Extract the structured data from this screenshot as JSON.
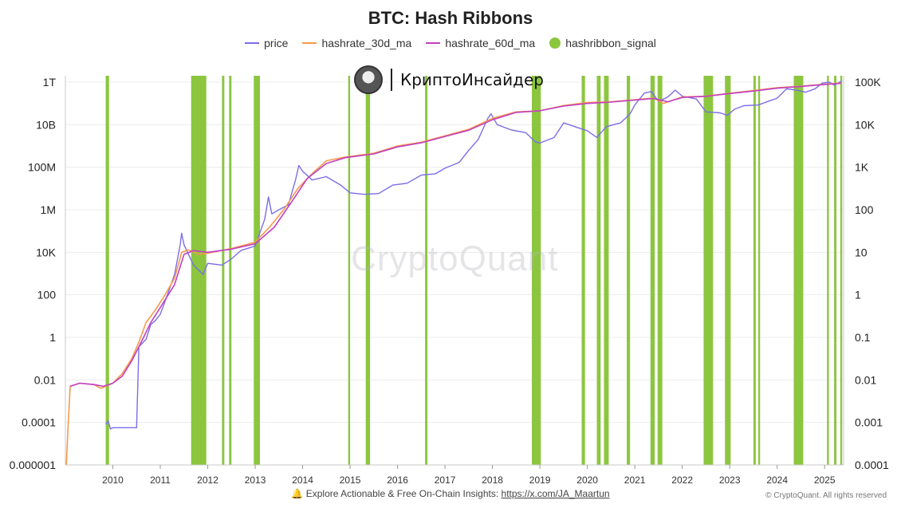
{
  "chart_data": {
    "type": "line",
    "title": "BTC: Hash Ribbons",
    "legend": [
      {
        "name": "price",
        "color": "#7b6ee6",
        "kind": "line"
      },
      {
        "name": "hashrate_30d_ma",
        "color": "#f59a4a",
        "kind": "line"
      },
      {
        "name": "hashrate_60d_ma",
        "color": "#c23fc4",
        "kind": "line"
      },
      {
        "name": "hashribbon_signal",
        "color": "#8cc63f",
        "kind": "dot"
      }
    ],
    "legend_position": "top-center",
    "x_ticks": [
      "2010",
      "2011",
      "2012",
      "2013",
      "2014",
      "2015",
      "2016",
      "2017",
      "2018",
      "2019",
      "2020",
      "2021",
      "2022",
      "2023",
      "2024",
      "2025"
    ],
    "xlim": [
      2009.0,
      2025.4
    ],
    "left_axis": {
      "scale": "log",
      "ylim": [
        1e-06,
        1000000000000.0
      ],
      "ticks": [
        "0.000001",
        "0.0001",
        "0.01",
        "1",
        "100",
        "10K",
        "1M",
        "100M",
        "10B",
        "1T"
      ]
    },
    "right_axis": {
      "scale": "log",
      "ylim": [
        0.0001,
        100000
      ],
      "ticks": [
        "0.0001",
        "0.001",
        "0.01",
        "0.1",
        "1",
        "10",
        "100",
        "1K",
        "10K",
        "100K"
      ]
    },
    "grid": "horizontal",
    "series": [
      {
        "name": "price",
        "axis": "right",
        "points": [
          [
            2009.85,
            0.0009
          ],
          [
            2009.9,
            0.0011
          ],
          [
            2009.95,
            0.0007
          ],
          [
            2010.0,
            0.00075
          ],
          [
            2010.5,
            0.00075
          ],
          [
            2010.55,
            0.06
          ],
          [
            2010.7,
            0.09
          ],
          [
            2010.8,
            0.2
          ],
          [
            2010.9,
            0.25
          ],
          [
            2011.0,
            0.35
          ],
          [
            2011.15,
            1.0
          ],
          [
            2011.3,
            3.0
          ],
          [
            2011.42,
            15.0
          ],
          [
            2011.45,
            28.0
          ],
          [
            2011.5,
            15.0
          ],
          [
            2011.7,
            5.0
          ],
          [
            2011.9,
            3.0
          ],
          [
            2012.0,
            5.5
          ],
          [
            2012.3,
            5.0
          ],
          [
            2012.5,
            7.0
          ],
          [
            2012.7,
            11.0
          ],
          [
            2012.9,
            13.0
          ],
          [
            2013.0,
            14.0
          ],
          [
            2013.2,
            60.0
          ],
          [
            2013.28,
            200.0
          ],
          [
            2013.35,
            80.0
          ],
          [
            2013.5,
            100.0
          ],
          [
            2013.7,
            130.0
          ],
          [
            2013.85,
            500.0
          ],
          [
            2013.92,
            1100.0
          ],
          [
            2014.0,
            800.0
          ],
          [
            2014.2,
            500.0
          ],
          [
            2014.5,
            600.0
          ],
          [
            2014.8,
            380.0
          ],
          [
            2015.0,
            250.0
          ],
          [
            2015.3,
            230.0
          ],
          [
            2015.6,
            240.0
          ],
          [
            2015.9,
            380.0
          ],
          [
            2016.2,
            420.0
          ],
          [
            2016.5,
            650.0
          ],
          [
            2016.8,
            700.0
          ],
          [
            2017.0,
            950.0
          ],
          [
            2017.3,
            1300.0
          ],
          [
            2017.5,
            2500.0
          ],
          [
            2017.7,
            4500.0
          ],
          [
            2017.9,
            14000.0
          ],
          [
            2017.97,
            18000.0
          ],
          [
            2018.1,
            10000.0
          ],
          [
            2018.4,
            7500.0
          ],
          [
            2018.7,
            6500.0
          ],
          [
            2018.9,
            4000.0
          ],
          [
            2019.0,
            3700.0
          ],
          [
            2019.3,
            5000.0
          ],
          [
            2019.5,
            11000.0
          ],
          [
            2019.8,
            8500.0
          ],
          [
            2020.0,
            7200.0
          ],
          [
            2020.2,
            5000.0
          ],
          [
            2020.4,
            9000.0
          ],
          [
            2020.7,
            11000.0
          ],
          [
            2020.9,
            18000.0
          ],
          [
            2021.0,
            29000.0
          ],
          [
            2021.2,
            55000.0
          ],
          [
            2021.35,
            60000.0
          ],
          [
            2021.5,
            35000.0
          ],
          [
            2021.7,
            45000.0
          ],
          [
            2021.85,
            65000.0
          ],
          [
            2022.0,
            47000.0
          ],
          [
            2022.3,
            40000.0
          ],
          [
            2022.5,
            20000.0
          ],
          [
            2022.8,
            19000.0
          ],
          [
            2022.95,
            16500.0
          ],
          [
            2023.1,
            23000.0
          ],
          [
            2023.3,
            28000.0
          ],
          [
            2023.6,
            29000.0
          ],
          [
            2023.8,
            35000.0
          ],
          [
            2024.0,
            42000.0
          ],
          [
            2024.2,
            70000.0
          ],
          [
            2024.4,
            65000.0
          ],
          [
            2024.6,
            58000.0
          ],
          [
            2024.8,
            70000.0
          ],
          [
            2024.95,
            95000.0
          ],
          [
            2025.1,
            100000.0
          ],
          [
            2025.2,
            85000.0
          ],
          [
            2025.35,
            105000.0
          ]
        ]
      },
      {
        "name": "hashrate_30d_ma",
        "axis": "left",
        "points": [
          [
            2009.02,
            1e-06
          ],
          [
            2009.06,
            0.0001
          ],
          [
            2009.1,
            0.005
          ],
          [
            2009.3,
            0.007
          ],
          [
            2009.6,
            0.006
          ],
          [
            2009.75,
            0.004
          ],
          [
            2009.85,
            0.005
          ],
          [
            2010.0,
            0.007
          ],
          [
            2010.2,
            0.02
          ],
          [
            2010.4,
            0.1
          ],
          [
            2010.55,
            0.6
          ],
          [
            2010.7,
            5.0
          ],
          [
            2010.9,
            20.0
          ],
          [
            2011.1,
            100.0
          ],
          [
            2011.3,
            600.0
          ],
          [
            2011.45,
            10000.0
          ],
          [
            2011.6,
            13000.0
          ],
          [
            2011.8,
            8000.0
          ],
          [
            2012.0,
            9000.0
          ],
          [
            2012.5,
            15000.0
          ],
          [
            2013.0,
            30000.0
          ],
          [
            2013.3,
            150000.0
          ],
          [
            2013.6,
            1000000.0
          ],
          [
            2013.9,
            10000000.0
          ],
          [
            2014.2,
            50000000.0
          ],
          [
            2014.5,
            200000000.0
          ],
          [
            2014.9,
            300000000.0
          ],
          [
            2015.5,
            450000000.0
          ],
          [
            2016.0,
            1000000000.0
          ],
          [
            2016.5,
            1500000000.0
          ],
          [
            2017.0,
            3000000000.0
          ],
          [
            2017.5,
            6000000000.0
          ],
          [
            2018.0,
            20000000000.0
          ],
          [
            2018.5,
            40000000000.0
          ],
          [
            2019.0,
            45000000000.0
          ],
          [
            2019.5,
            80000000000.0
          ],
          [
            2020.0,
            110000000000.0
          ],
          [
            2020.5,
            120000000000.0
          ],
          [
            2021.0,
            150000000000.0
          ],
          [
            2021.4,
            180000000000.0
          ],
          [
            2021.6,
            100000000000.0
          ],
          [
            2022.0,
            200000000000.0
          ],
          [
            2022.5,
            220000000000.0
          ],
          [
            2023.0,
            300000000000.0
          ],
          [
            2023.5,
            400000000000.0
          ],
          [
            2024.0,
            550000000000.0
          ],
          [
            2024.5,
            650000000000.0
          ],
          [
            2025.0,
            800000000000.0
          ],
          [
            2025.35,
            900000000000.0
          ]
        ]
      },
      {
        "name": "hashrate_60d_ma",
        "axis": "left",
        "points": [
          [
            2009.1,
            0.005
          ],
          [
            2009.3,
            0.007
          ],
          [
            2009.6,
            0.006
          ],
          [
            2009.8,
            0.005
          ],
          [
            2010.0,
            0.007
          ],
          [
            2010.2,
            0.015
          ],
          [
            2010.4,
            0.08
          ],
          [
            2010.6,
            0.6
          ],
          [
            2010.8,
            5.0
          ],
          [
            2011.0,
            25.0
          ],
          [
            2011.3,
            300.0
          ],
          [
            2011.5,
            8000.0
          ],
          [
            2011.7,
            12000.0
          ],
          [
            2012.0,
            10000.0
          ],
          [
            2012.5,
            14000.0
          ],
          [
            2013.0,
            25000.0
          ],
          [
            2013.4,
            150000.0
          ],
          [
            2013.8,
            3000000.0
          ],
          [
            2014.1,
            30000000.0
          ],
          [
            2014.5,
            150000000.0
          ],
          [
            2014.9,
            280000000.0
          ],
          [
            2015.5,
            420000000.0
          ],
          [
            2016.0,
            900000000.0
          ],
          [
            2016.5,
            1400000000.0
          ],
          [
            2017.0,
            2800000000.0
          ],
          [
            2017.5,
            5500000000.0
          ],
          [
            2018.0,
            17000000000.0
          ],
          [
            2018.5,
            38000000000.0
          ],
          [
            2019.0,
            45000000000.0
          ],
          [
            2019.5,
            75000000000.0
          ],
          [
            2020.0,
            100000000000.0
          ],
          [
            2020.5,
            115000000000.0
          ],
          [
            2021.0,
            145000000000.0
          ],
          [
            2021.4,
            170000000000.0
          ],
          [
            2021.7,
            120000000000.0
          ],
          [
            2022.0,
            190000000000.0
          ],
          [
            2022.5,
            215000000000.0
          ],
          [
            2023.0,
            290000000000.0
          ],
          [
            2023.5,
            380000000000.0
          ],
          [
            2024.0,
            520000000000.0
          ],
          [
            2024.5,
            630000000000.0
          ],
          [
            2025.0,
            780000000000.0
          ],
          [
            2025.35,
            880000000000.0
          ]
        ]
      },
      {
        "name": "hashribbon_signal",
        "kind": "signal_bands",
        "intervals": [
          [
            2009.85,
            2009.92
          ],
          [
            2011.65,
            2011.97
          ],
          [
            2012.3,
            2012.35
          ],
          [
            2012.45,
            2012.5
          ],
          [
            2012.97,
            2013.1
          ],
          [
            2014.96,
            2015.0
          ],
          [
            2015.33,
            2015.42
          ],
          [
            2016.58,
            2016.63
          ],
          [
            2018.83,
            2019.02
          ],
          [
            2019.88,
            2019.95
          ],
          [
            2020.2,
            2020.28
          ],
          [
            2020.35,
            2020.45
          ],
          [
            2020.83,
            2020.9
          ],
          [
            2021.33,
            2021.42
          ],
          [
            2021.48,
            2021.58
          ],
          [
            2022.45,
            2022.65
          ],
          [
            2022.9,
            2023.02
          ],
          [
            2023.5,
            2023.55
          ],
          [
            2023.6,
            2023.64
          ],
          [
            2024.35,
            2024.55
          ],
          [
            2025.05,
            2025.09
          ],
          [
            2025.2,
            2025.25
          ],
          [
            2025.33,
            2025.37
          ]
        ]
      }
    ]
  },
  "brand": {
    "name": "КриптоИнсайдер"
  },
  "watermark": "CryptoQuant",
  "footer": {
    "icon": "bell-icon",
    "text": "Explore Actionable & Free On-Chain Insights: ",
    "link": "https://x.com/JA_Maartun"
  },
  "copyright": "© CryptoQuant. All rights reserved"
}
